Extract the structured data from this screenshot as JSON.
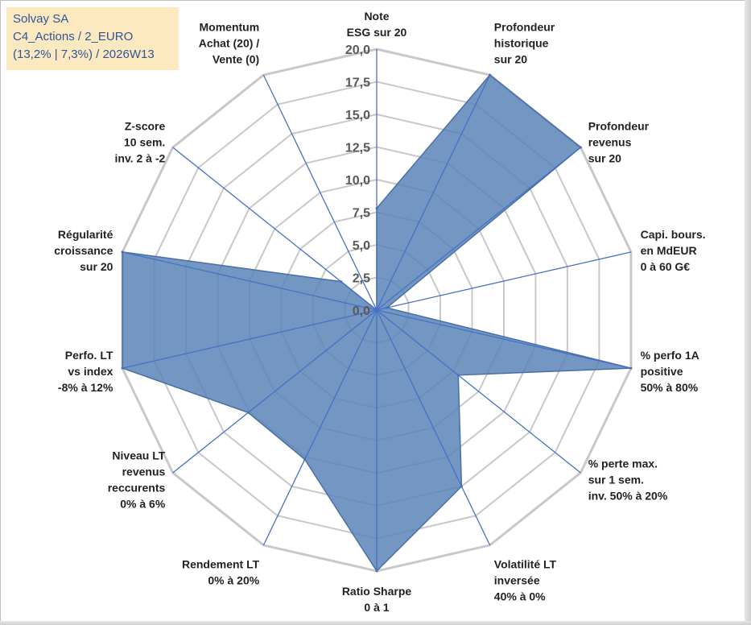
{
  "info": {
    "line1": "Solvay SA",
    "line2": "C4_Actions / 2_EURO",
    "line3": "(13,2% | 7,3%) / 2026W13"
  },
  "colors": {
    "grid": "#c8c8c8",
    "spoke": "#4472c4",
    "fill": "#5b84b8",
    "stroke": "#4a6fa5",
    "box": "#fde9c0",
    "info_text": "#2f5597"
  },
  "chart_data": {
    "type": "radar",
    "title": "",
    "rmin": 0,
    "rmax": 20,
    "step": 2.5,
    "tick_labels": [
      "0,0",
      "2,5",
      "5,0",
      "7,5",
      "10,0",
      "12,5",
      "15,0",
      "17,5",
      "20,0"
    ],
    "axes": [
      {
        "label": [
          "Note",
          "ESG sur 20"
        ],
        "value": 7.8
      },
      {
        "label": [
          "Profondeur",
          "historique",
          "sur 20"
        ],
        "value": 20
      },
      {
        "label": [
          "Profondeur",
          "revenus",
          "sur 20"
        ],
        "value": 20
      },
      {
        "label": [
          "Capi. bours.",
          "en MdEUR",
          "0 à 60 G€"
        ],
        "value": 0.8
      },
      {
        "label": [
          "% perfo 1A",
          "positive",
          "50% à 80%"
        ],
        "value": 20
      },
      {
        "label": [
          "% perte max.",
          "sur 1 sem.",
          "inv. 50% à 20%"
        ],
        "value": 8
      },
      {
        "label": [
          "Volatilité LT",
          "inversée",
          "40% à 0%"
        ],
        "value": 15
      },
      {
        "label": [
          "Ratio Sharpe",
          "0 à 1"
        ],
        "value": 20
      },
      {
        "label": [
          "Rendement LT",
          "0% à 20%"
        ],
        "value": 12.7
      },
      {
        "label": [
          "Niveau LT",
          "revenus",
          "reccurents",
          "0% à 6%"
        ],
        "value": 12.6
      },
      {
        "label": [
          "Perfo. LT",
          "vs index",
          "-8% à 12%"
        ],
        "value": 20
      },
      {
        "label": [
          "Régularité",
          "croissance",
          "sur 20"
        ],
        "value": 20
      },
      {
        "label": [
          "Z-score",
          "10 sem.",
          "inv. 2 à -2"
        ],
        "value": 3.5
      },
      {
        "label": [
          "Momentum",
          "Achat (20) /",
          "Vente (0)"
        ],
        "value": 0
      }
    ]
  }
}
